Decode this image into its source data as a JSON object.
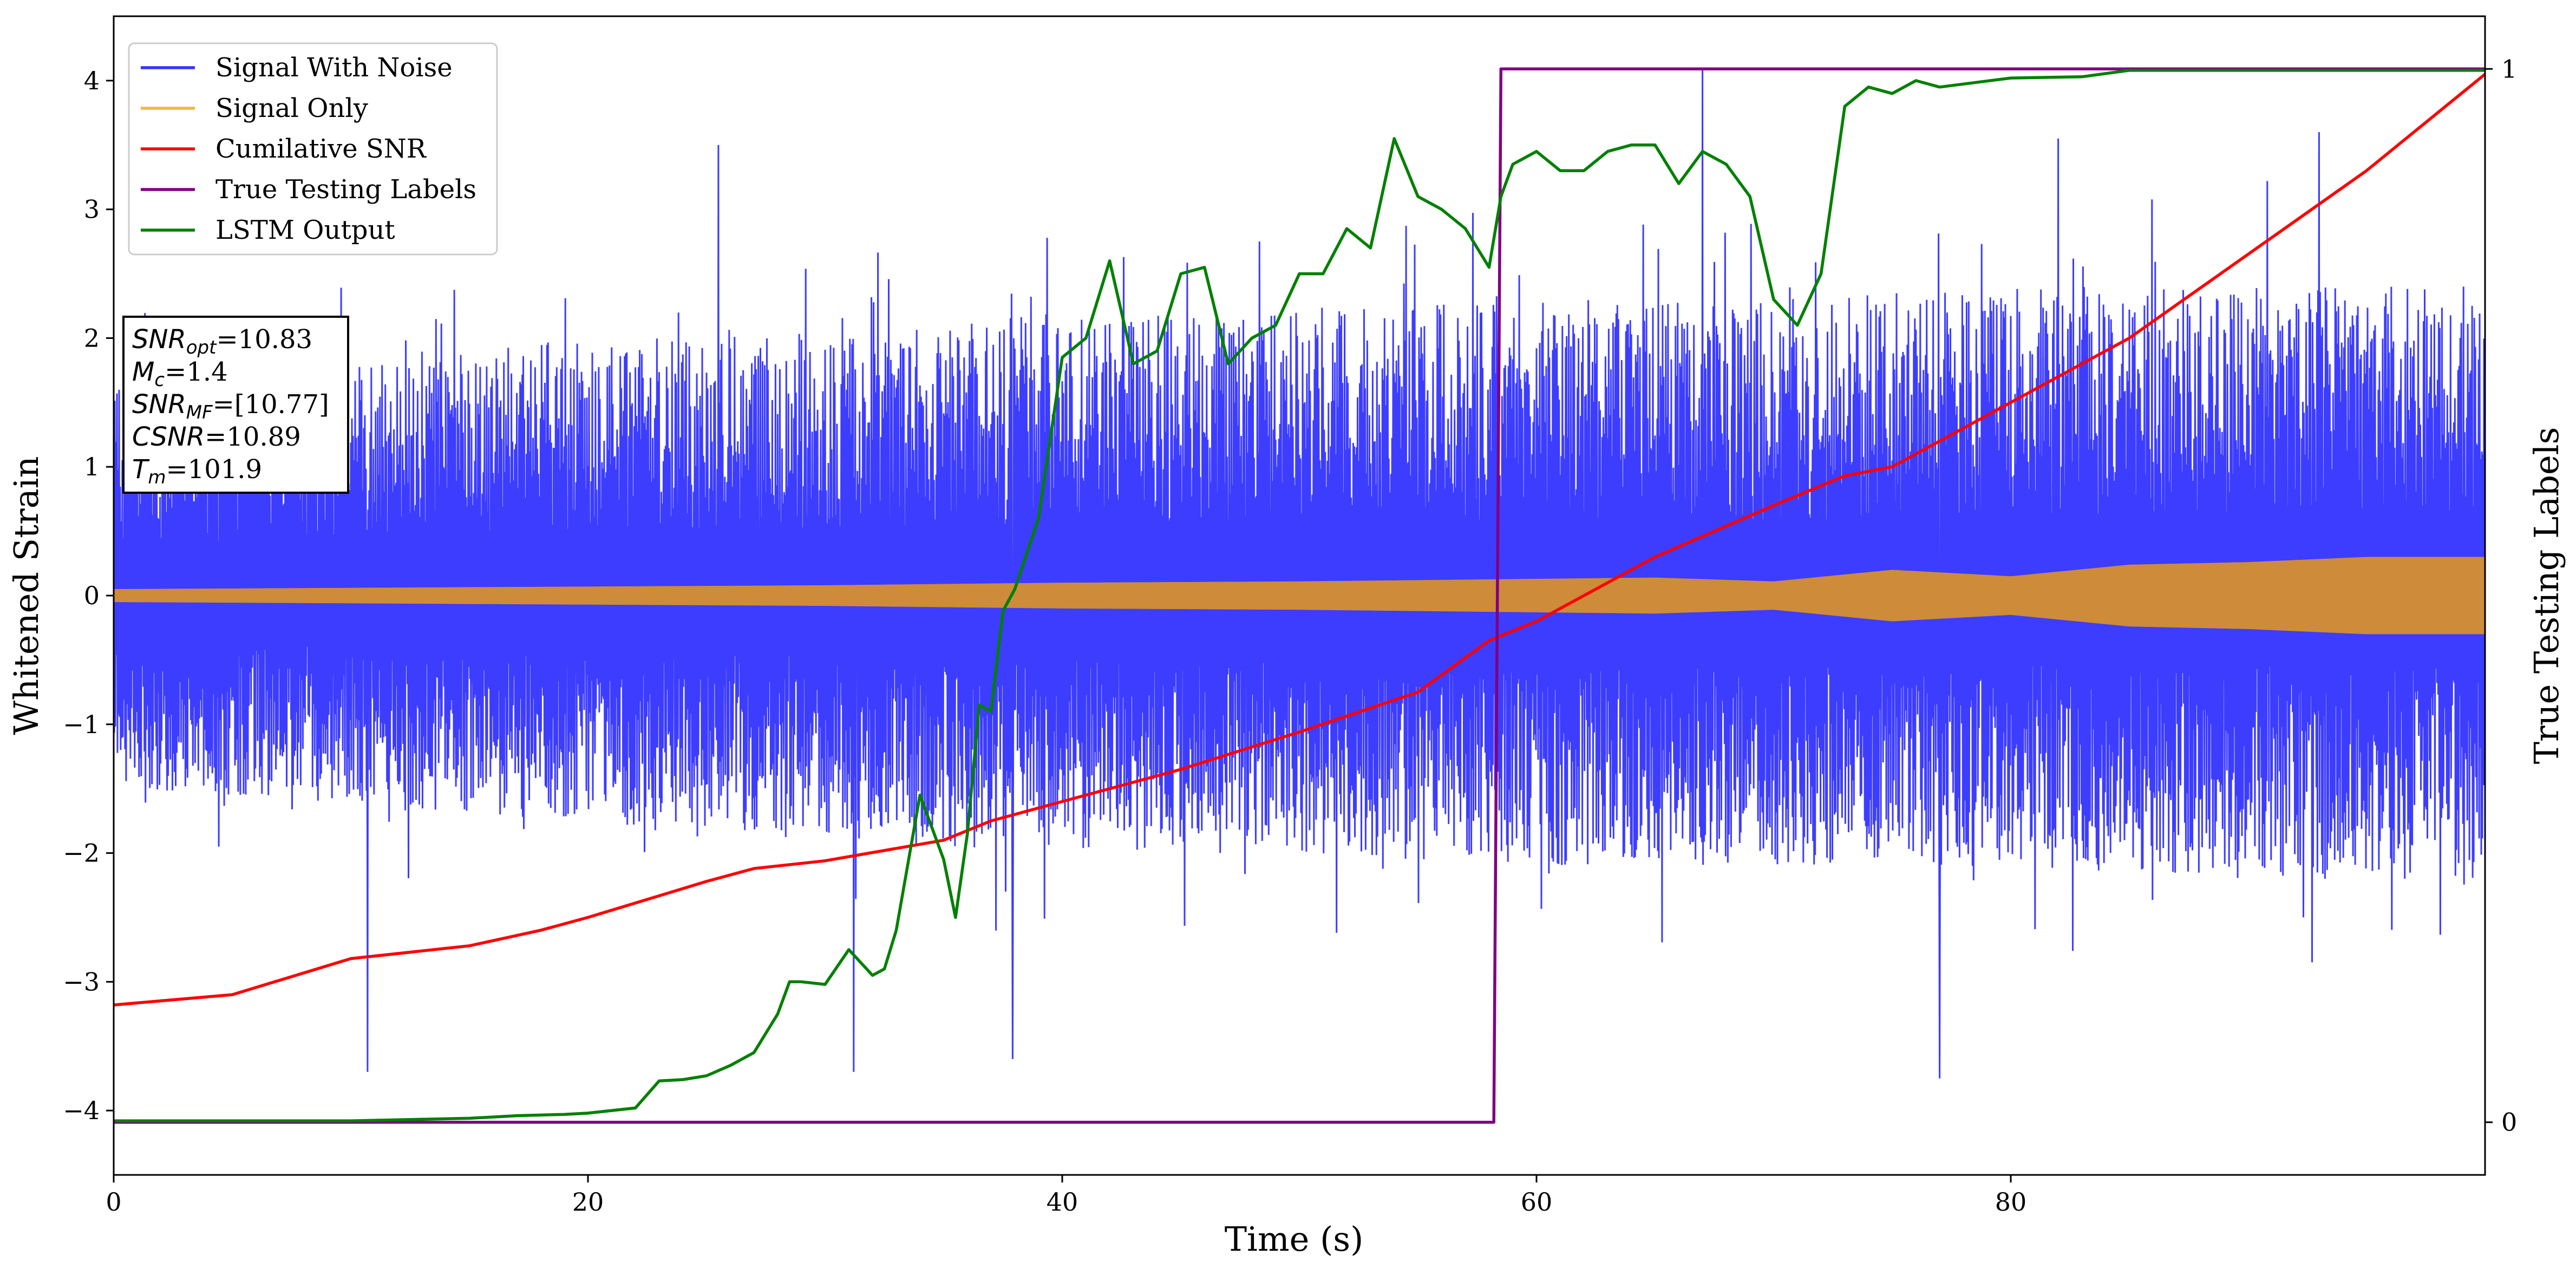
{
  "chart_data": {
    "type": "line",
    "xlabel": "Time (s)",
    "ylabel": "Whitened Strain",
    "y2label": "True Testing Labels",
    "xlim": [
      0,
      100
    ],
    "ylim": [
      -4.5,
      4.5
    ],
    "y2lim": [
      -0.05,
      1.05
    ],
    "xticks": [
      0,
      20,
      40,
      60,
      80
    ],
    "yticks": [
      -4,
      -3,
      -2,
      -1,
      0,
      1,
      2,
      3,
      4
    ],
    "y2ticks": [
      0,
      1
    ],
    "grid": false,
    "legend_position": "top-left",
    "legend": [
      "Signal With Noise",
      "Signal Only",
      "Cumilative SNR",
      "True Testing Labels",
      "LSTM Output"
    ],
    "annotation_lines": [
      {
        "var": "SNR",
        "sub": "opt",
        "rest": "=10.83"
      },
      {
        "var": "M",
        "sub": "c",
        "rest": "=1.4"
      },
      {
        "var": "SNR",
        "sub": "MF",
        "rest": "=[10.77]"
      },
      {
        "var": "CSNR",
        "sub": "",
        "rest": "=10.89"
      },
      {
        "var": "T",
        "sub": "m",
        "rest": "=101.9"
      }
    ],
    "series": [
      {
        "name": "Signal With Noise",
        "color": "#3333ff",
        "axis": "left",
        "description_type": "noise",
        "envelope": {
          "x": [
            0,
            10,
            20,
            30,
            40,
            50,
            60,
            70,
            80,
            90,
            100
          ],
          "upper_typical": [
            1.6,
            1.8,
            2.0,
            2.0,
            2.2,
            2.2,
            2.3,
            2.3,
            2.4,
            2.4,
            2.4
          ],
          "lower_typical": [
            -1.5,
            -1.6,
            -1.8,
            -1.9,
            -2.0,
            -2.0,
            -2.1,
            -2.1,
            -2.1,
            -2.2,
            -2.2
          ]
        },
        "peaks": [
          {
            "x": 10.7,
            "y": -3.7
          },
          {
            "x": 25.5,
            "y": 3.5
          },
          {
            "x": 31.2,
            "y": -3.7
          },
          {
            "x": 37.9,
            "y": -3.6
          },
          {
            "x": 67.0,
            "y": 4.1
          },
          {
            "x": 77.0,
            "y": -3.75
          },
          {
            "x": 82.0,
            "y": 3.55
          },
          {
            "x": 93.0,
            "y": 3.6
          }
        ]
      },
      {
        "name": "Signal Only",
        "color": "#f5b642",
        "axis": "left",
        "description_type": "band",
        "amplitude_envelope": {
          "x": [
            0,
            10,
            20,
            30,
            40,
            50,
            60,
            65,
            70,
            75,
            80,
            85,
            90,
            95,
            100
          ],
          "amplitude": [
            0.05,
            0.06,
            0.07,
            0.08,
            0.1,
            0.11,
            0.13,
            0.14,
            0.11,
            0.2,
            0.15,
            0.24,
            0.26,
            0.3,
            0.3
          ]
        }
      },
      {
        "name": "Cumilative SNR",
        "color": "#ff0000",
        "axis": "left",
        "x": [
          0,
          5,
          10,
          15,
          18,
          20,
          25,
          27,
          30,
          35,
          37,
          40,
          45,
          50,
          55,
          58,
          60,
          65,
          70,
          73,
          75,
          80,
          85,
          90,
          95,
          100
        ],
        "y": [
          -3.18,
          -3.1,
          -2.82,
          -2.72,
          -2.6,
          -2.5,
          -2.22,
          -2.12,
          -2.06,
          -1.9,
          -1.75,
          -1.6,
          -1.35,
          -1.06,
          -0.75,
          -0.35,
          -0.2,
          0.3,
          0.7,
          0.93,
          1.0,
          1.5,
          2.0,
          2.65,
          3.3,
          4.05
        ]
      },
      {
        "name": "True Testing Labels",
        "color": "#800080",
        "axis": "right",
        "x": [
          0,
          58.2,
          58.5,
          100
        ],
        "y": [
          0,
          0,
          1,
          1
        ]
      },
      {
        "name": "LSTM Output",
        "color": "#008000",
        "axis": "left",
        "x": [
          0,
          10,
          15,
          17,
          19,
          20,
          21,
          22,
          23,
          24,
          25,
          26,
          27,
          28,
          28.5,
          29,
          30,
          31,
          32,
          32.5,
          33,
          34,
          35,
          35.5,
          36,
          36.5,
          37,
          37.5,
          38,
          39,
          40,
          41,
          42,
          43,
          44,
          45,
          46,
          47,
          48,
          49,
          50,
          51,
          52,
          53,
          54,
          55,
          56,
          57,
          58,
          58.5,
          59,
          60,
          61,
          62,
          63,
          64,
          65,
          66,
          67,
          68,
          69,
          70,
          71,
          72,
          73,
          74,
          75,
          76,
          77,
          80,
          83,
          85,
          90,
          100
        ],
        "y": [
          -4.08,
          -4.08,
          -4.06,
          -4.04,
          -4.03,
          -4.02,
          -4.0,
          -3.98,
          -3.77,
          -3.76,
          -3.73,
          -3.65,
          -3.55,
          -3.25,
          -3.0,
          -3.0,
          -3.02,
          -2.75,
          -2.95,
          -2.9,
          -2.6,
          -1.55,
          -2.05,
          -2.5,
          -1.85,
          -0.85,
          -0.9,
          -0.12,
          0.05,
          0.6,
          1.85,
          2.0,
          2.6,
          1.8,
          1.9,
          2.5,
          2.55,
          1.8,
          2.0,
          2.1,
          2.5,
          2.5,
          2.85,
          2.7,
          3.55,
          3.1,
          3.0,
          2.85,
          2.55,
          3.1,
          3.35,
          3.45,
          3.3,
          3.3,
          3.45,
          3.5,
          3.5,
          3.2,
          3.45,
          3.35,
          3.1,
          2.3,
          2.1,
          2.5,
          3.8,
          3.95,
          3.9,
          4.0,
          3.95,
          4.02,
          4.03,
          4.08,
          4.08,
          4.08
        ]
      }
    ]
  }
}
